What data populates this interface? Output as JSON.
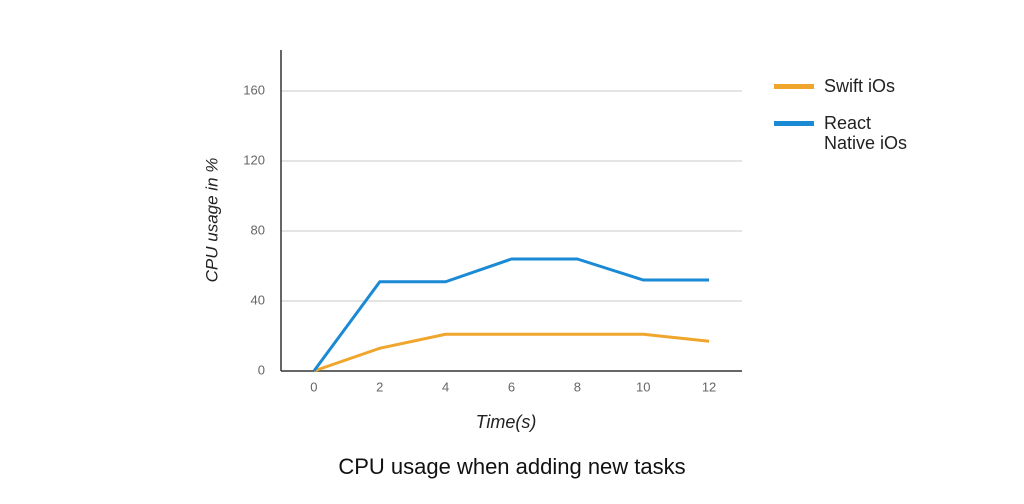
{
  "chart_data": {
    "type": "line",
    "title": "CPU usage when adding new tasks",
    "x_label": "Time(s)",
    "y_label": "CPU usage in %",
    "x": [
      0,
      2,
      4,
      6,
      8,
      10,
      12
    ],
    "xlim": [
      -1,
      13
    ],
    "xticks": [
      0,
      2,
      4,
      6,
      8,
      10,
      12
    ],
    "ylim": [
      0,
      180
    ],
    "yticks": [
      0,
      40,
      80,
      120,
      160
    ],
    "grid": true,
    "legend": "right",
    "series": [
      {
        "name": "Swift iOs",
        "color": "#f0a52c",
        "values": [
          0,
          13,
          21,
          21,
          21,
          21,
          17
        ]
      },
      {
        "name": "React Native iOs",
        "color": "#1a8ad4",
        "values": [
          0,
          51,
          51,
          64,
          64,
          52,
          52
        ]
      }
    ]
  }
}
